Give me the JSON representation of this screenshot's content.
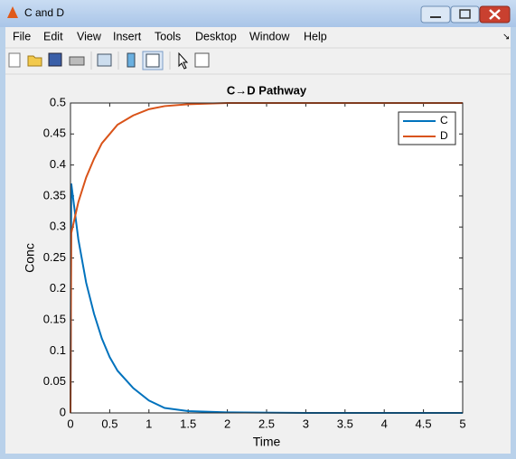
{
  "window": {
    "title": "C and D",
    "menu": [
      "File",
      "Edit",
      "View",
      "Insert",
      "Tools",
      "Desktop",
      "Window",
      "Help"
    ]
  },
  "chart_data": {
    "type": "line",
    "title": "C→D Pathway",
    "x_label": "Time",
    "y_label": "Conc",
    "x": [
      0,
      0.01,
      0.1,
      0.2,
      0.3,
      0.4,
      0.5,
      0.6,
      0.8,
      1,
      1.2,
      1.5,
      2,
      3,
      4,
      5
    ],
    "series": [
      {
        "name": "C",
        "color": "#0072bd",
        "values": [
          0,
          0.37,
          0.28,
          0.21,
          0.16,
          0.12,
          0.09,
          0.068,
          0.04,
          0.02,
          0.008,
          0.003,
          0.001,
          0,
          0,
          0
        ]
      },
      {
        "name": "D",
        "color": "#d95319",
        "values": [
          0,
          0.29,
          0.34,
          0.38,
          0.41,
          0.435,
          0.45,
          0.465,
          0.48,
          0.49,
          0.495,
          0.498,
          0.5,
          0.5,
          0.5,
          0.5
        ]
      }
    ],
    "xlim": [
      0,
      5
    ],
    "xticks": [
      0,
      0.5,
      1,
      1.5,
      2,
      2.5,
      3,
      3.5,
      4,
      4.5,
      5
    ],
    "ylim": [
      0,
      0.5
    ],
    "yticks": [
      0,
      0.05,
      0.1,
      0.15,
      0.2,
      0.25,
      0.3,
      0.35,
      0.4,
      0.45,
      0.5
    ],
    "legend": "northeast",
    "grid": false
  }
}
